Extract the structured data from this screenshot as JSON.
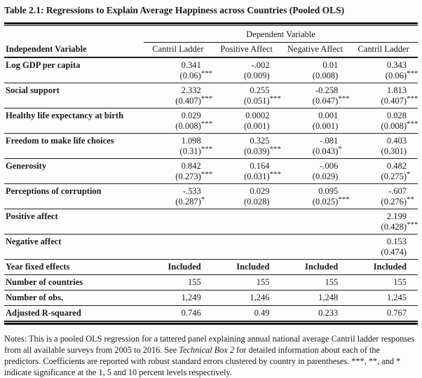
{
  "page": {
    "title": "Table 2.1: Regressions to Explain Average Happiness across Countries (Pooled OLS)"
  },
  "colors": {
    "background": "#fdfdfd",
    "text": "#1a1a1a",
    "rule": "#161616"
  },
  "table": {
    "dependent_variable_header": "Dependent Variable",
    "independent_variable_header": "Independent Variable",
    "columns": [
      "Cantril Ladder",
      "Positive Affect",
      "Negative Affect",
      "Cantril Ladder"
    ],
    "rows": [
      {
        "label": "Log GDP per capita",
        "cells": [
          {
            "coef": "0.341",
            "se": "(0.06)",
            "stars": "***"
          },
          {
            "coef": "-.002",
            "se": "(0.009)",
            "stars": ""
          },
          {
            "coef": "0.01",
            "se": "(0.008)",
            "stars": ""
          },
          {
            "coef": "0.343",
            "se": "(0.06)",
            "stars": "***"
          }
        ]
      },
      {
        "label": "Social support",
        "cells": [
          {
            "coef": "2.332",
            "se": "(0.407)",
            "stars": "***"
          },
          {
            "coef": "0.255",
            "se": "(0.051)",
            "stars": "***"
          },
          {
            "coef": "-0.258",
            "se": "(0.047)",
            "stars": "***"
          },
          {
            "coef": "1.813",
            "se": "(0.407)",
            "stars": "***"
          }
        ]
      },
      {
        "label": "Healthy life expectancy at birth",
        "cells": [
          {
            "coef": "0.029",
            "se": "(0.008)",
            "stars": "***"
          },
          {
            "coef": "0.0002",
            "se": "(0.001)",
            "stars": ""
          },
          {
            "coef": "0.001",
            "se": "(0.001)",
            "stars": ""
          },
          {
            "coef": "0.028",
            "se": "(0.008)",
            "stars": "***"
          }
        ]
      },
      {
        "label": "Freedom to make life choices",
        "cells": [
          {
            "coef": "1.098",
            "se": "(0.31)",
            "stars": "***"
          },
          {
            "coef": "0.325",
            "se": "(0.039)",
            "stars": "***"
          },
          {
            "coef": "-.081",
            "se": "(0.043)",
            "stars": "*"
          },
          {
            "coef": "0.403",
            "se": "(0.301)",
            "stars": ""
          }
        ]
      },
      {
        "label": "Generosity",
        "cells": [
          {
            "coef": "0.842",
            "se": "(0.273)",
            "stars": "***"
          },
          {
            "coef": "0.164",
            "se": "(0.031)",
            "stars": "***"
          },
          {
            "coef": "-.006",
            "se": "(0.029)",
            "stars": ""
          },
          {
            "coef": "0.482",
            "se": "(0.275)",
            "stars": "*"
          }
        ]
      },
      {
        "label": "Perceptions of corruption",
        "cells": [
          {
            "coef": "-.533",
            "se": "(0.287)",
            "stars": "*"
          },
          {
            "coef": "0.029",
            "se": "(0.028)",
            "stars": ""
          },
          {
            "coef": "0.095",
            "se": "(0.025)",
            "stars": "***"
          },
          {
            "coef": "-.607",
            "se": "(0.276)",
            "stars": "**"
          }
        ]
      },
      {
        "label": "Positive affect",
        "cells": [
          {
            "coef": "",
            "se": "",
            "stars": ""
          },
          {
            "coef": "",
            "se": "",
            "stars": ""
          },
          {
            "coef": "",
            "se": "",
            "stars": ""
          },
          {
            "coef": "2.199",
            "se": "(0.428)",
            "stars": "***"
          }
        ]
      },
      {
        "label": "Negative affect",
        "cells": [
          {
            "coef": "",
            "se": "",
            "stars": ""
          },
          {
            "coef": "",
            "se": "",
            "stars": ""
          },
          {
            "coef": "",
            "se": "",
            "stars": ""
          },
          {
            "coef": "0.153",
            "se": "(0.474)",
            "stars": ""
          }
        ]
      }
    ],
    "summary_rows": [
      {
        "label": "Year fixed effects",
        "values": [
          "Included",
          "Included",
          "Included",
          "Included"
        ]
      },
      {
        "label": "Number of countries",
        "values": [
          "155",
          "155",
          "155",
          "155"
        ]
      },
      {
        "label": "Number of obs.",
        "values": [
          "1,249",
          "1,246",
          "1,248",
          "1,245"
        ]
      },
      {
        "label": "Adjusted R-squared",
        "values": [
          "0.746",
          "0.49",
          "0.233",
          "0.767"
        ]
      }
    ]
  },
  "notes": {
    "prefix": "Notes: This is a pooled OLS regression for a tattered panel explaining annual national average Cantril ladder responses from all available surveys from 2005 to 2016. See ",
    "italic": "Technical Box 2",
    "suffix": " for detailed information about each of the predictors. Coefficients are reported with robust standard errors clustered by country in parentheses. ***, **, and * indicate significance at the 1, 5 and 10 percent levels respectively."
  }
}
